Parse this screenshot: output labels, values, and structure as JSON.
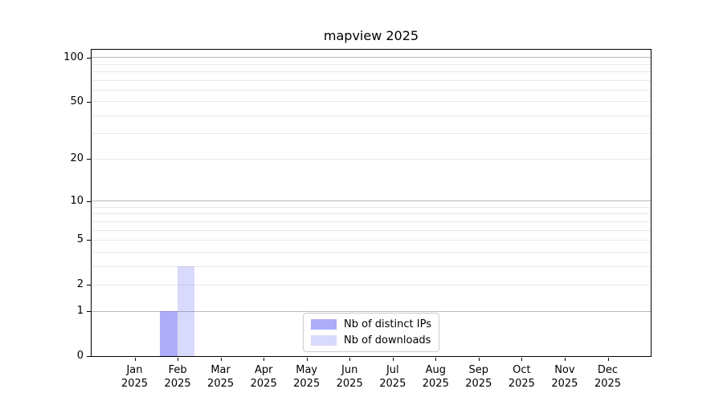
{
  "chart_data": {
    "type": "bar",
    "title": "mapview 2025",
    "categories": [
      "Jan 2025",
      "Feb 2025",
      "Mar 2025",
      "Apr 2025",
      "May 2025",
      "Jun 2025",
      "Jul 2025",
      "Aug 2025",
      "Sep 2025",
      "Oct 2025",
      "Nov 2025",
      "Dec 2025"
    ],
    "series": [
      {
        "name": "Nb of distinct IPs",
        "color": "rgba(80,80,240,0.47)",
        "values": [
          0,
          1,
          0,
          0,
          0,
          0,
          0,
          0,
          0,
          0,
          0,
          0
        ]
      },
      {
        "name": "Nb of downloads",
        "color": "rgba(80,80,240,0.22)",
        "values": [
          0,
          3,
          0,
          0,
          0,
          0,
          0,
          0,
          0,
          0,
          0,
          0
        ]
      }
    ],
    "xlabel": "",
    "ylabel": "",
    "y_axis": {
      "scale": "log1p",
      "tick_values": [
        0,
        1,
        2,
        5,
        10,
        20,
        50,
        100
      ],
      "tick_labels": [
        "0",
        "1",
        "2",
        "5",
        "10",
        "20",
        "50",
        "100"
      ],
      "ylim": [
        0,
        113
      ]
    },
    "grid": {
      "major_values": [
        1,
        10,
        100
      ],
      "minor_values": [
        2,
        3,
        4,
        5,
        6,
        7,
        8,
        9,
        20,
        30,
        40,
        50,
        60,
        70,
        80,
        90
      ],
      "major_color": "#b9b9b9",
      "minor_color": "#e9e9e9"
    },
    "legend": {
      "position": "lower center"
    },
    "axis_color": "#000000"
  }
}
